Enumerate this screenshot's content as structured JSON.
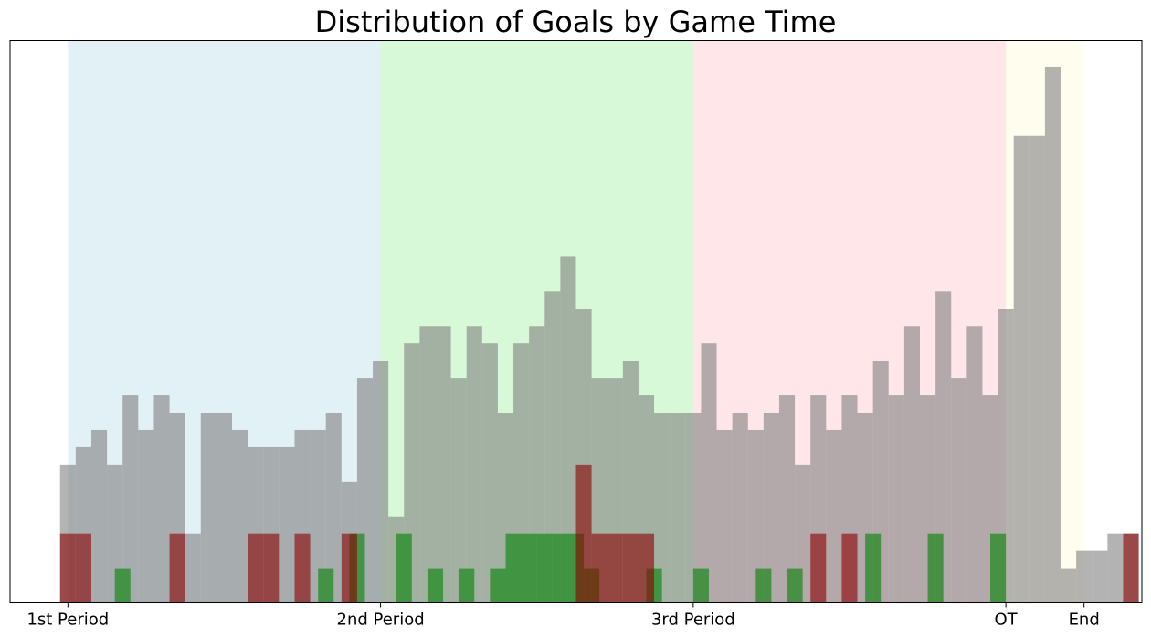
{
  "chart_data": {
    "type": "bar",
    "title": "Distribution of Goals by Game Time",
    "xlabel": "",
    "ylabel": "",
    "grid": false,
    "legend": "none",
    "x_ticks": [
      {
        "value": 0,
        "label": "1st Period"
      },
      {
        "value": 20,
        "label": "2nd Period"
      },
      {
        "value": 40,
        "label": "3rd Period"
      },
      {
        "value": 60,
        "label": "OT"
      },
      {
        "value": 65,
        "label": "End"
      }
    ],
    "xlim": [
      -3.7,
      68.7
    ],
    "ylim": [
      0,
      32.5
    ],
    "bin_width": 1,
    "period_bands": [
      {
        "start": 0,
        "end": 20,
        "color": "#add8e6",
        "alpha": 0.35
      },
      {
        "start": 20,
        "end": 40,
        "color": "#90ee90",
        "alpha": 0.35
      },
      {
        "start": 40,
        "end": 60,
        "color": "#ffb6c1",
        "alpha": 0.35
      },
      {
        "start": 60,
        "end": 65,
        "color": "#fffacd",
        "alpha": 0.35
      }
    ],
    "series": [
      {
        "color": "#808080",
        "alpha": 0.6,
        "start": -0.5,
        "values": [
          8,
          9,
          10,
          8,
          12,
          10,
          12,
          11,
          4,
          11,
          11,
          10,
          9,
          9,
          9,
          10,
          10,
          11,
          7,
          13,
          14,
          5,
          15,
          16,
          16,
          13,
          16,
          15,
          11,
          15,
          16,
          18,
          20,
          17,
          13,
          13,
          14,
          12,
          11,
          11,
          11,
          15,
          10,
          11,
          10,
          11,
          12,
          8,
          12,
          10,
          12,
          11,
          14,
          12,
          16,
          12,
          18,
          13,
          16,
          12,
          17,
          27,
          27,
          31,
          2,
          3,
          3,
          4,
          4
        ]
      },
      {
        "color": "#008000",
        "alpha": 0.6,
        "start": 0,
        "values": [
          0,
          0,
          0,
          2,
          0,
          0,
          0,
          0,
          0,
          0,
          0,
          0,
          0,
          0,
          0,
          0,
          2,
          0,
          4,
          0,
          0,
          4,
          0,
          2,
          0,
          2,
          0,
          2,
          4,
          4,
          4,
          4,
          4,
          2,
          0,
          0,
          0,
          2,
          0,
          0,
          2,
          0,
          0,
          0,
          2,
          0,
          2,
          0,
          0,
          0,
          0,
          4,
          0,
          0,
          0,
          4,
          0,
          0,
          0,
          4,
          0,
          0,
          0
        ]
      },
      {
        "color": "#8b0000",
        "alpha": 0.6,
        "start": -0.5,
        "values": [
          4,
          4,
          0,
          0,
          0,
          0,
          0,
          4,
          0,
          0,
          0,
          0,
          4,
          4,
          0,
          4,
          0,
          0,
          4,
          0,
          0,
          0,
          0,
          0,
          0,
          0,
          0,
          0,
          0,
          0,
          0,
          0,
          0,
          8,
          4,
          4,
          4,
          4,
          0,
          0,
          0,
          0,
          0,
          0,
          0,
          0,
          0,
          0,
          4,
          0,
          4,
          0,
          0,
          0,
          0,
          0,
          0,
          0,
          0,
          0,
          0,
          0,
          0,
          0,
          0,
          0,
          0,
          0,
          4
        ]
      }
    ]
  }
}
